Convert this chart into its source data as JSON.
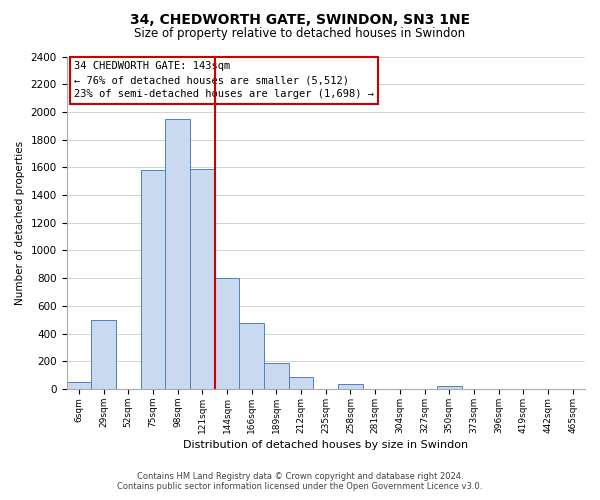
{
  "title": "34, CHEDWORTH GATE, SWINDON, SN3 1NE",
  "subtitle": "Size of property relative to detached houses in Swindon",
  "xlabel": "Distribution of detached houses by size in Swindon",
  "ylabel": "Number of detached properties",
  "bin_labels": [
    "6sqm",
    "29sqm",
    "52sqm",
    "75sqm",
    "98sqm",
    "121sqm",
    "144sqm",
    "166sqm",
    "189sqm",
    "212sqm",
    "235sqm",
    "258sqm",
    "281sqm",
    "304sqm",
    "327sqm",
    "350sqm",
    "373sqm",
    "396sqm",
    "419sqm",
    "442sqm",
    "465sqm"
  ],
  "bar_heights": [
    50,
    500,
    0,
    1580,
    1950,
    1590,
    800,
    480,
    190,
    90,
    0,
    35,
    0,
    0,
    0,
    20,
    0,
    0,
    0,
    0,
    0
  ],
  "bar_color": "#c9d9f0",
  "bar_edge_color": "#5080c0",
  "ylim": [
    0,
    2400
  ],
  "yticks": [
    0,
    200,
    400,
    600,
    800,
    1000,
    1200,
    1400,
    1600,
    1800,
    2000,
    2200,
    2400
  ],
  "vline_color": "#cc0000",
  "annotation_title": "34 CHEDWORTH GATE: 143sqm",
  "annotation_line1": "← 76% of detached houses are smaller (5,512)",
  "annotation_line2": "23% of semi-detached houses are larger (1,698) →",
  "annotation_box_color": "#cc0000",
  "footer_line1": "Contains HM Land Registry data © Crown copyright and database right 2024.",
  "footer_line2": "Contains public sector information licensed under the Open Government Licence v3.0.",
  "background_color": "#ffffff",
  "grid_color": "#cccccc"
}
